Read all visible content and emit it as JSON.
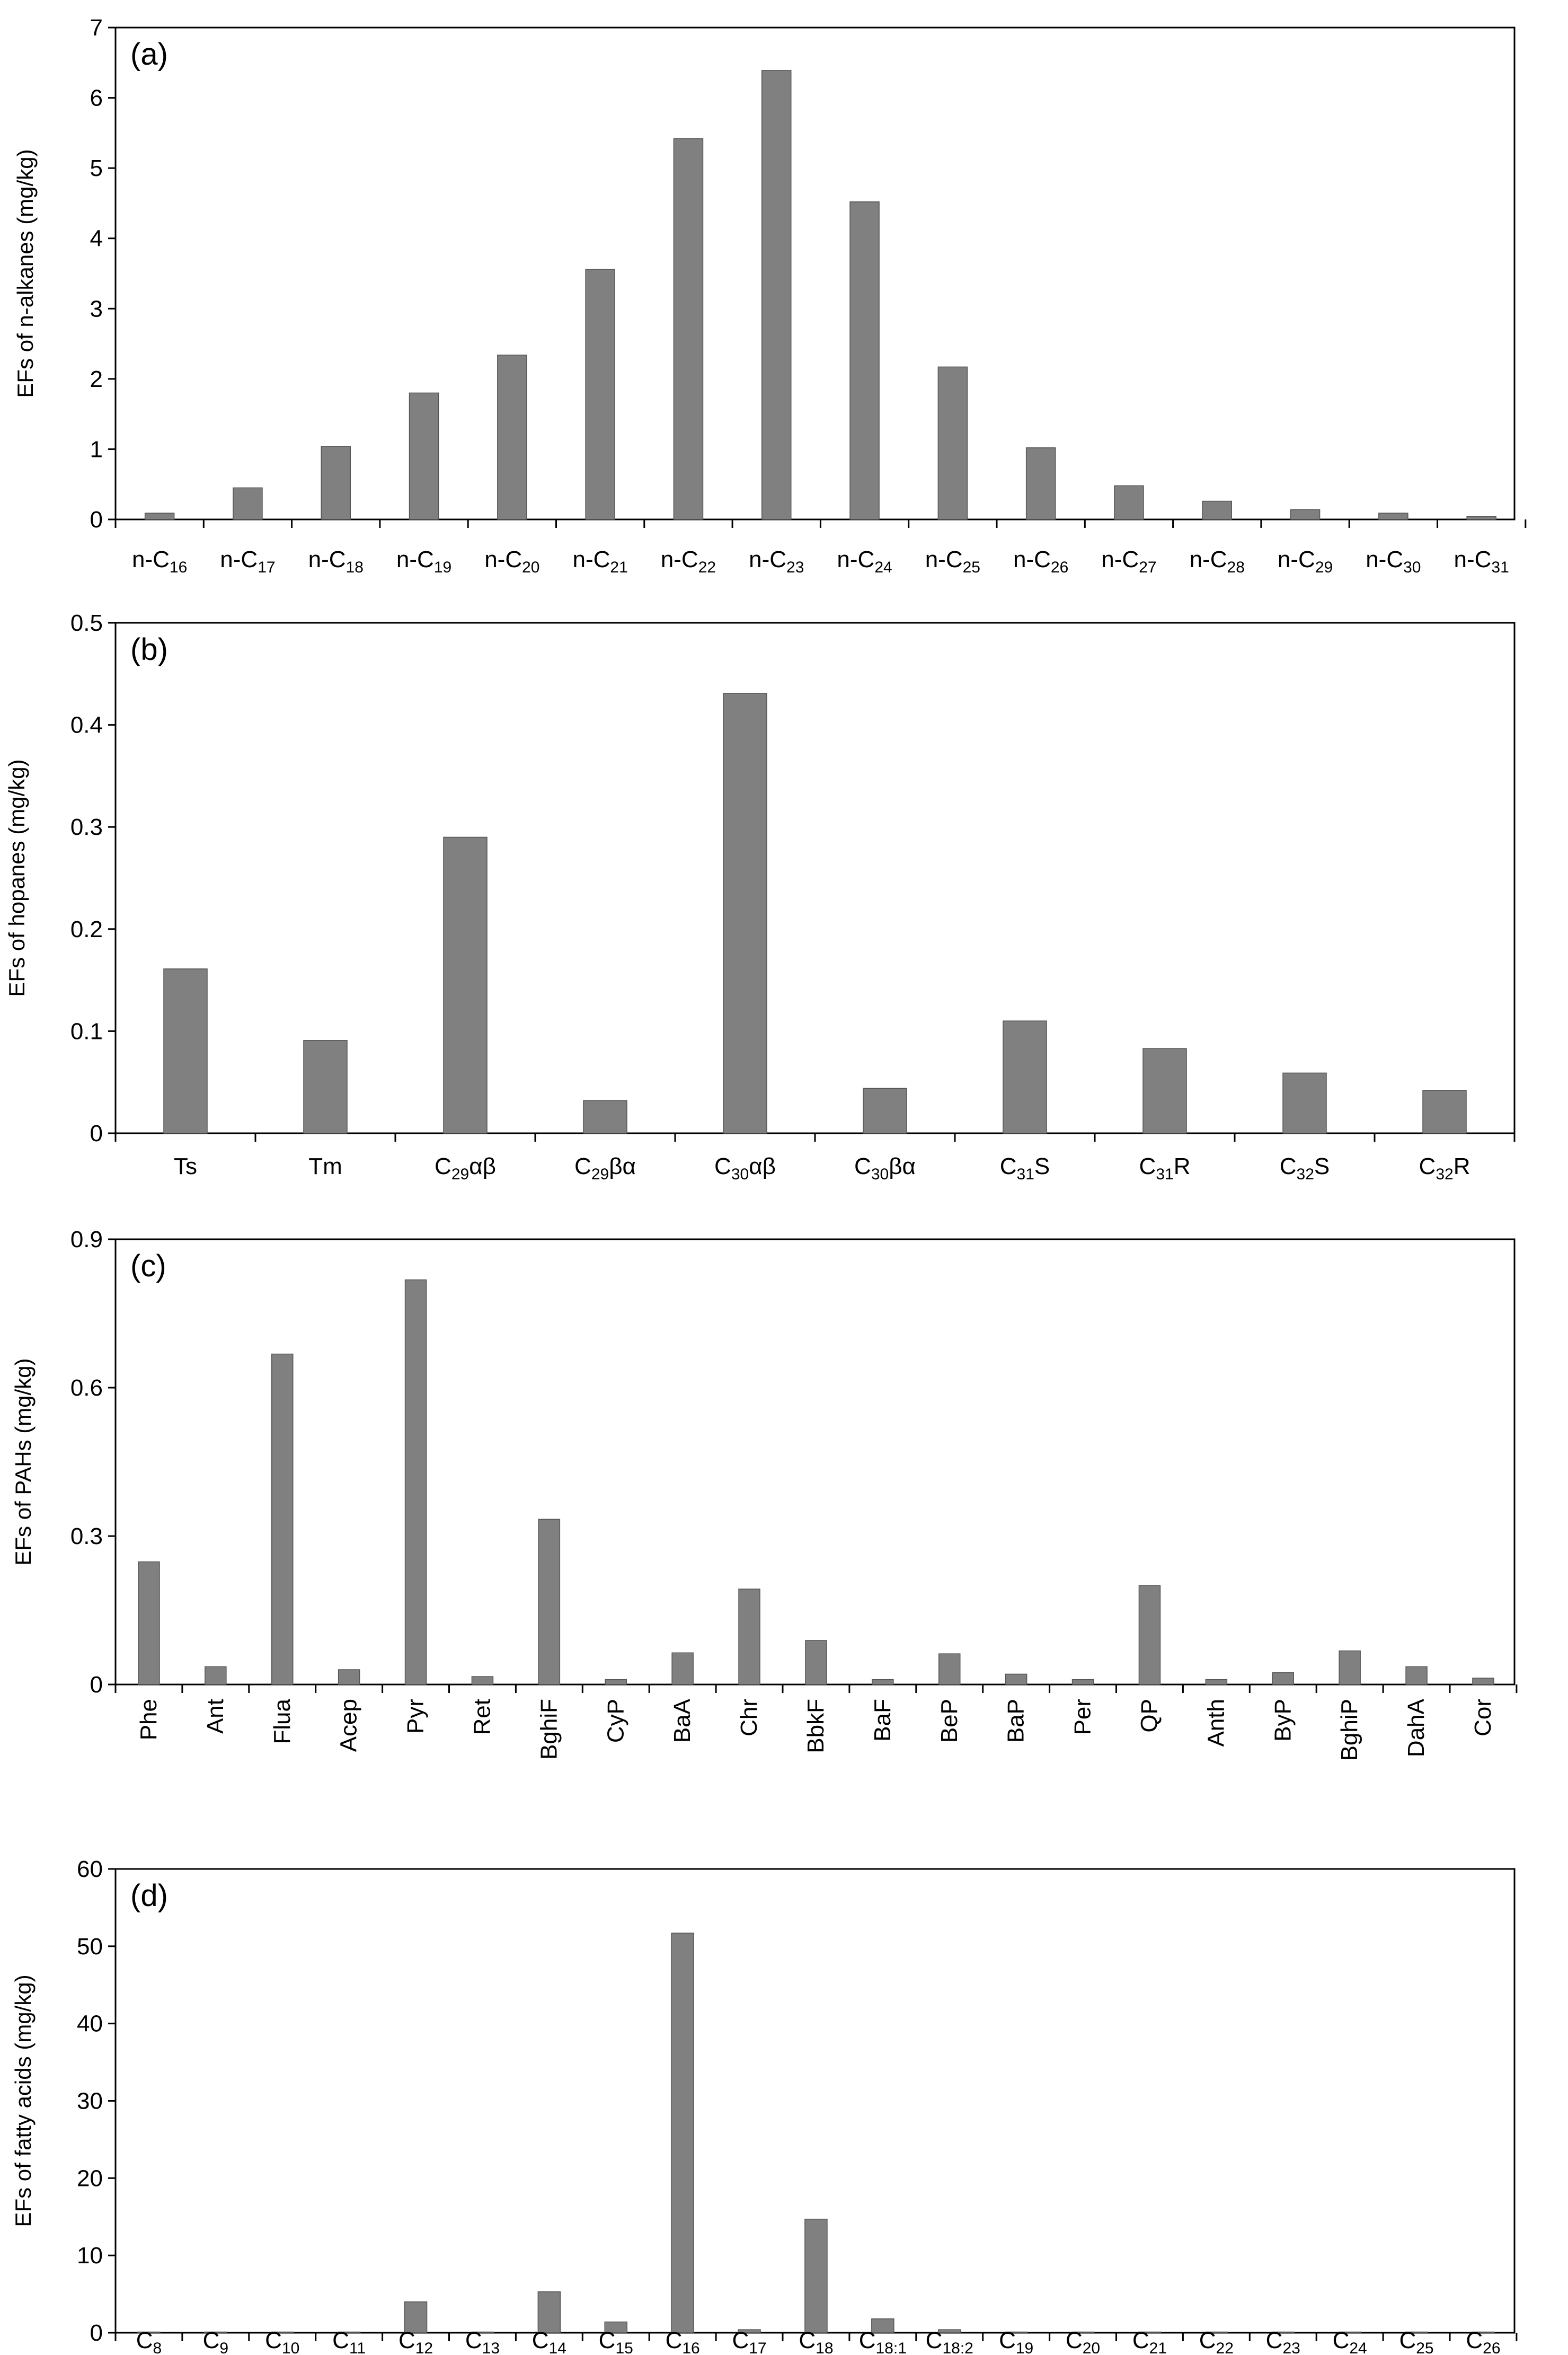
{
  "chart_data": [
    {
      "type": "bar",
      "panel_label": "(a)",
      "ylabel": "EFs of n-alkanes (mg/kg)",
      "xlabel": "",
      "ylim": [
        0,
        7
      ],
      "yticks": [
        0,
        1,
        2,
        3,
        4,
        5,
        6,
        7
      ],
      "grid": false,
      "x_label_style": "horizontal",
      "categories": [
        {
          "base": "n-C",
          "sub": "16",
          "sep": "",
          "sub2": "",
          "tail": ""
        },
        {
          "base": "n-C",
          "sub": "17",
          "sep": "",
          "sub2": "",
          "tail": ""
        },
        {
          "base": "n-C",
          "sub": "18",
          "sep": "",
          "sub2": "",
          "tail": ""
        },
        {
          "base": "n-C",
          "sub": "19",
          "sep": "",
          "sub2": "",
          "tail": ""
        },
        {
          "base": "n-C",
          "sub": "20",
          "sep": "",
          "sub2": "",
          "tail": ""
        },
        {
          "base": "n-C",
          "sub": "21",
          "sep": "",
          "sub2": "",
          "tail": ""
        },
        {
          "base": "n-C",
          "sub": "22",
          "sep": "",
          "sub2": "",
          "tail": ""
        },
        {
          "base": "n-C",
          "sub": "23",
          "sep": "",
          "sub2": "",
          "tail": ""
        },
        {
          "base": "n-C",
          "sub": "24",
          "sep": "",
          "sub2": "",
          "tail": ""
        },
        {
          "base": "n-C",
          "sub": "25",
          "sep": "",
          "sub2": "",
          "tail": ""
        },
        {
          "base": "n-C",
          "sub": "26",
          "sep": "",
          "sub2": "",
          "tail": ""
        },
        {
          "base": "n-C",
          "sub": "27",
          "sep": "",
          "sub2": "",
          "tail": ""
        },
        {
          "base": "n-C",
          "sub": "28",
          "sep": "",
          "sub2": "",
          "tail": ""
        },
        {
          "base": "n-C",
          "sub": "29",
          "sep": "",
          "sub2": "",
          "tail": ""
        },
        {
          "base": "n-C",
          "sub": "30",
          "sep": "",
          "sub2": "",
          "tail": ""
        },
        {
          "base": "n-C",
          "sub": "31",
          "sep": "",
          "sub2": "",
          "tail": ""
        }
      ],
      "values": [
        0.09,
        0.45,
        1.04,
        1.8,
        2.34,
        3.56,
        5.42,
        6.39,
        4.52,
        2.17,
        1.02,
        0.48,
        0.26,
        0.14,
        0.09,
        0.04
      ]
    },
    {
      "type": "bar",
      "panel_label": "(b)",
      "ylabel": "EFs of hopanes (mg/kg)",
      "xlabel": "",
      "ylim": [
        0,
        0.5
      ],
      "yticks": [
        0,
        0.1,
        0.2,
        0.3,
        0.4,
        0.5
      ],
      "grid": false,
      "x_label_style": "horizontal",
      "categories": [
        {
          "base": "Ts",
          "sub": "",
          "sep": "",
          "sub2": "",
          "tail": ""
        },
        {
          "base": "Tm",
          "sub": "",
          "sep": "",
          "sub2": "",
          "tail": ""
        },
        {
          "base": "C",
          "sub": "29",
          "sep": "",
          "sub2": "",
          "tail": "αβ"
        },
        {
          "base": "C",
          "sub": "29",
          "sep": "",
          "sub2": "",
          "tail": "βα"
        },
        {
          "base": "C",
          "sub": "30",
          "sep": "",
          "sub2": "",
          "tail": "αβ"
        },
        {
          "base": "C",
          "sub": "30",
          "sep": "",
          "sub2": "",
          "tail": "βα"
        },
        {
          "base": "C",
          "sub": "31",
          "sep": "",
          "sub2": "",
          "tail": "S"
        },
        {
          "base": "C",
          "sub": "31",
          "sep": "",
          "sub2": "",
          "tail": "R"
        },
        {
          "base": "C",
          "sub": "32",
          "sep": "",
          "sub2": "",
          "tail": "S"
        },
        {
          "base": "C",
          "sub": "32",
          "sep": "",
          "sub2": "",
          "tail": "R"
        }
      ],
      "values": [
        0.161,
        0.091,
        0.29,
        0.032,
        0.431,
        0.044,
        0.11,
        0.083,
        0.059,
        0.042
      ]
    },
    {
      "type": "bar",
      "panel_label": "(c)",
      "ylabel": "EFs of PAHs (mg/kg)",
      "xlabel": "",
      "ylim": [
        0,
        0.9
      ],
      "yticks": [
        0,
        0.3,
        0.6,
        0.9
      ],
      "grid": false,
      "x_label_style": "rotated",
      "categories": [
        {
          "base": "Phe",
          "sub": "",
          "sep": "",
          "sub2": "",
          "tail": ""
        },
        {
          "base": "Ant",
          "sub": "",
          "sep": "",
          "sub2": "",
          "tail": ""
        },
        {
          "base": "Flua",
          "sub": "",
          "sep": "",
          "sub2": "",
          "tail": ""
        },
        {
          "base": "Acep",
          "sub": "",
          "sep": "",
          "sub2": "",
          "tail": ""
        },
        {
          "base": "Pyr",
          "sub": "",
          "sep": "",
          "sub2": "",
          "tail": ""
        },
        {
          "base": "Ret",
          "sub": "",
          "sep": "",
          "sub2": "",
          "tail": ""
        },
        {
          "base": "BghiF",
          "sub": "",
          "sep": "",
          "sub2": "",
          "tail": ""
        },
        {
          "base": "CyP",
          "sub": "",
          "sep": "",
          "sub2": "",
          "tail": ""
        },
        {
          "base": "BaA",
          "sub": "",
          "sep": "",
          "sub2": "",
          "tail": ""
        },
        {
          "base": "Chr",
          "sub": "",
          "sep": "",
          "sub2": "",
          "tail": ""
        },
        {
          "base": "BbkF",
          "sub": "",
          "sep": "",
          "sub2": "",
          "tail": ""
        },
        {
          "base": "BaF",
          "sub": "",
          "sep": "",
          "sub2": "",
          "tail": ""
        },
        {
          "base": "BeP",
          "sub": "",
          "sep": "",
          "sub2": "",
          "tail": ""
        },
        {
          "base": "BaP",
          "sub": "",
          "sep": "",
          "sub2": "",
          "tail": ""
        },
        {
          "base": "Per",
          "sub": "",
          "sep": "",
          "sub2": "",
          "tail": ""
        },
        {
          "base": "QP",
          "sub": "",
          "sep": "",
          "sub2": "",
          "tail": ""
        },
        {
          "base": "Anth",
          "sub": "",
          "sep": "",
          "sub2": "",
          "tail": ""
        },
        {
          "base": "ByP",
          "sub": "",
          "sep": "",
          "sub2": "",
          "tail": ""
        },
        {
          "base": "BghiP",
          "sub": "",
          "sep": "",
          "sub2": "",
          "tail": ""
        },
        {
          "base": "DahA",
          "sub": "",
          "sep": "",
          "sub2": "",
          "tail": ""
        },
        {
          "base": "Cor",
          "sub": "",
          "sep": "",
          "sub2": "",
          "tail": ""
        }
      ],
      "values": [
        0.248,
        0.036,
        0.668,
        0.03,
        0.818,
        0.016,
        0.334,
        0.01,
        0.064,
        0.193,
        0.089,
        0.01,
        0.062,
        0.021,
        0.01,
        0.2,
        0.01,
        0.024,
        0.068,
        0.036,
        0.013
      ]
    },
    {
      "type": "bar",
      "panel_label": "(d)",
      "ylabel": "EFs of fatty acids (mg/kg)",
      "xlabel": "",
      "ylim": [
        0,
        60
      ],
      "yticks": [
        0,
        10,
        20,
        30,
        40,
        50,
        60
      ],
      "grid": false,
      "x_label_style": "horizontal",
      "categories": [
        {
          "base": "C",
          "sub": "8",
          "sep": "",
          "sub2": "",
          "tail": ""
        },
        {
          "base": "C",
          "sub": "9",
          "sep": "",
          "sub2": "",
          "tail": ""
        },
        {
          "base": "C",
          "sub": "10",
          "sep": "",
          "sub2": "",
          "tail": ""
        },
        {
          "base": "C",
          "sub": "11",
          "sep": "",
          "sub2": "",
          "tail": ""
        },
        {
          "base": "C",
          "sub": "12",
          "sep": "",
          "sub2": "",
          "tail": ""
        },
        {
          "base": "C",
          "sub": "13",
          "sep": "",
          "sub2": "",
          "tail": ""
        },
        {
          "base": "C",
          "sub": "14",
          "sep": "",
          "sub2": "",
          "tail": ""
        },
        {
          "base": "C",
          "sub": "15",
          "sep": "",
          "sub2": "",
          "tail": ""
        },
        {
          "base": "C",
          "sub": "16",
          "sep": "",
          "sub2": "",
          "tail": ""
        },
        {
          "base": "C",
          "sub": "17",
          "sep": "",
          "sub2": "",
          "tail": ""
        },
        {
          "base": "C",
          "sub": "18",
          "sep": "",
          "sub2": "",
          "tail": ""
        },
        {
          "base": "C",
          "sub": "18",
          "sep": ":",
          "sub2": "1",
          "tail": ""
        },
        {
          "base": "C",
          "sub": "18",
          "sep": ":",
          "sub2": "2",
          "tail": ""
        },
        {
          "base": "C",
          "sub": "19",
          "sep": "",
          "sub2": "",
          "tail": ""
        },
        {
          "base": "C",
          "sub": "20",
          "sep": "",
          "sub2": "",
          "tail": ""
        },
        {
          "base": "C",
          "sub": "21",
          "sep": "",
          "sub2": "",
          "tail": ""
        },
        {
          "base": "C",
          "sub": "22",
          "sep": "",
          "sub2": "",
          "tail": ""
        },
        {
          "base": "C",
          "sub": "23",
          "sep": "",
          "sub2": "",
          "tail": ""
        },
        {
          "base": "C",
          "sub": "24",
          "sep": "",
          "sub2": "",
          "tail": ""
        },
        {
          "base": "C",
          "sub": "25",
          "sep": "",
          "sub2": "",
          "tail": ""
        },
        {
          "base": "C",
          "sub": "26",
          "sep": "",
          "sub2": "",
          "tail": ""
        }
      ],
      "values": [
        0.1,
        0.1,
        0.1,
        0.1,
        4.0,
        0.1,
        5.3,
        1.4,
        51.7,
        0.4,
        14.7,
        1.8,
        0.4,
        0.1,
        0.1,
        0.1,
        0.1,
        0.1,
        0.1,
        0.1,
        0.1
      ]
    }
  ]
}
